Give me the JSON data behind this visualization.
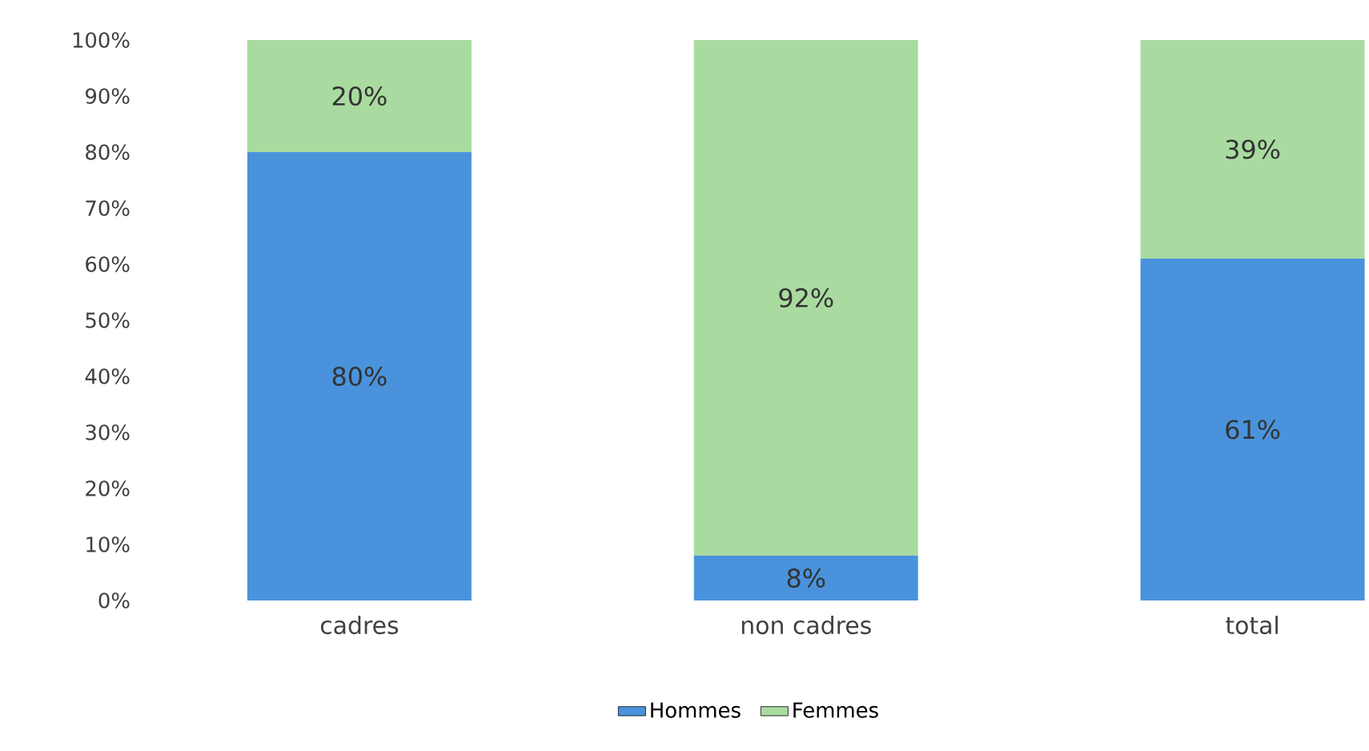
{
  "chart_data": {
    "type": "bar",
    "stacked": true,
    "categories": [
      "cadres",
      "non cadres",
      "total"
    ],
    "series": [
      {
        "name": "Hommes",
        "color": "#4a93dc",
        "values": [
          80,
          8,
          61
        ],
        "value_labels": [
          "80%",
          "8%",
          "61%"
        ]
      },
      {
        "name": "Femmes",
        "color": "#a9dba0",
        "values": [
          20,
          92,
          39
        ],
        "value_labels": [
          "20%",
          "92%",
          "39%"
        ]
      }
    ],
    "ylim": [
      0,
      100
    ],
    "yticks": [
      {
        "value": 0,
        "label": "0%"
      },
      {
        "value": 10,
        "label": "10%"
      },
      {
        "value": 20,
        "label": "20%"
      },
      {
        "value": 30,
        "label": "30%"
      },
      {
        "value": 40,
        "label": "40%"
      },
      {
        "value": 50,
        "label": "50%"
      },
      {
        "value": 60,
        "label": "60%"
      },
      {
        "value": 70,
        "label": "70%"
      },
      {
        "value": 80,
        "label": "80%"
      },
      {
        "value": 90,
        "label": "90%"
      },
      {
        "value": 100,
        "label": "100%"
      }
    ],
    "legend": "bottom",
    "grid": false
  }
}
